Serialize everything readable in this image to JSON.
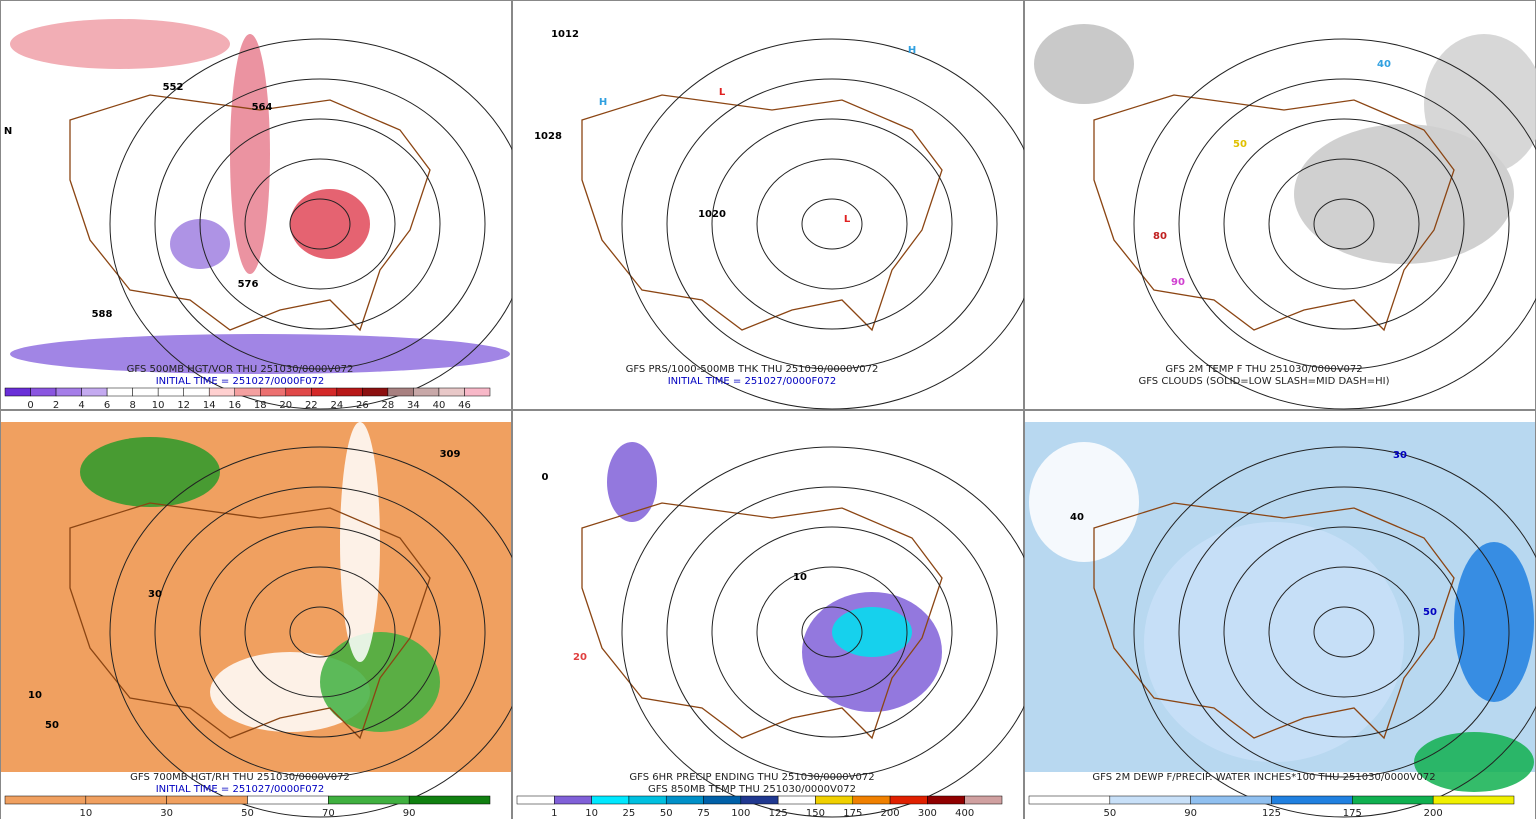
{
  "panels": [
    {
      "caption": [
        "GFS 500MB HGT/VOR THU 251030/0000V072",
        "INITIAL TIME = 251027/0000F072"
      ],
      "colorbar": {
        "colors": [
          "#6a2fd8",
          "#8a55e0",
          "#a57de8",
          "#c4aaf0",
          "#ffffff",
          "#ffffff",
          "#ffffff",
          "#ffffff",
          "#ffd0d0",
          "#f4a0a0",
          "#ec7070",
          "#e04848",
          "#d42828",
          "#b81818",
          "#8c1010",
          "#a88080",
          "#c8a8a8",
          "#e8c8c8",
          "#f8b8c8"
        ],
        "labels": [
          "0",
          "2",
          "4",
          "6",
          "8",
          "10",
          "12",
          "14",
          "16",
          "18",
          "20",
          "22",
          "24",
          "26",
          "28",
          "34",
          "40",
          "46"
        ]
      },
      "map_labels": [
        "552",
        "564",
        "576",
        "588",
        "N"
      ]
    },
    {
      "caption": [
        "GFS PRS/1000-500MB THK THU 251030/0000V072",
        "INITIAL TIME = 251027/0000F072"
      ],
      "map_labels": [
        "1012",
        "1028",
        "1020",
        "H",
        "H",
        "L",
        "L"
      ]
    },
    {
      "caption": [
        "GFS 2M TEMP F THU 251030/0000V072",
        "GFS CLOUDS (SOLID=LOW SLASH=MID DASH=HI)"
      ],
      "map_labels": [
        "40",
        "50",
        "80",
        "90"
      ]
    },
    {
      "caption": [
        "GFS 700MB HGT/RH THU 251030/0000V072",
        "INITIAL TIME = 251027/0000F072"
      ],
      "colorbar": {
        "colors": [
          "#f0a060",
          "#f0a060",
          "#f0a060",
          "#ffffff",
          "#40b040",
          "#108010"
        ],
        "labels": [
          "10",
          "30",
          "50",
          "70",
          "90"
        ]
      },
      "map_labels": [
        "309",
        "10",
        "50",
        "30"
      ]
    },
    {
      "caption": [
        "GFS 6HR PRECIP ENDING THU 251030/0000V072",
        "GFS 850MB TEMP THU 251030/0000V072"
      ],
      "colorbar": {
        "colors": [
          "#ffffff",
          "#8060d8",
          "#00e8ff",
          "#00c0e0",
          "#0090c8",
          "#0060a8",
          "#203890",
          "#ffffff",
          "#f0d000",
          "#f08000",
          "#e02000",
          "#900000",
          "#d0a0a0"
        ],
        "labels": [
          "1",
          "10",
          "25",
          "50",
          "75",
          "100",
          "125",
          "150",
          "175",
          "200",
          "300",
          "400"
        ]
      },
      "map_labels": [
        "0",
        "20",
        "10"
      ]
    },
    {
      "caption": [
        "GFS 2M DEWP F/PRECIP. WATER INCHES*100 THU 251030/0000V072"
      ],
      "colorbar": {
        "colors": [
          "#ffffff",
          "#c8e0f8",
          "#90c0f0",
          "#2080e0",
          "#10b050",
          "#f0f000"
        ],
        "labels": [
          "50",
          "90",
          "125",
          "175",
          "200"
        ]
      },
      "map_labels": [
        "40",
        "30",
        "50"
      ]
    }
  ]
}
